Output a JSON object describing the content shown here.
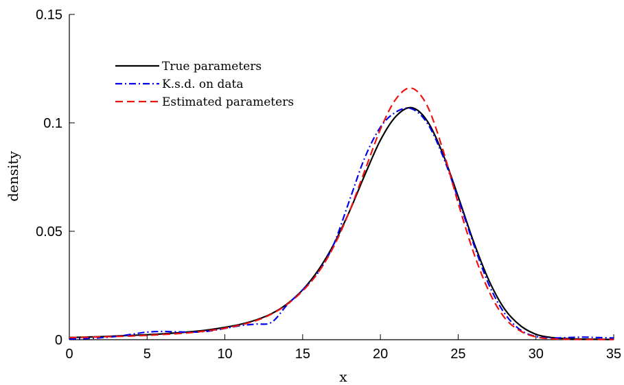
{
  "chart_data": {
    "type": "line",
    "title": "",
    "xlabel": "x",
    "ylabel": "density",
    "xlim": [
      0,
      35
    ],
    "ylim": [
      0,
      0.15
    ],
    "xticks": [
      0,
      5,
      10,
      15,
      20,
      25,
      30,
      35
    ],
    "yticks": [
      0,
      0.05,
      0.1,
      0.15
    ],
    "xtick_labels": [
      "0",
      "5",
      "10",
      "15",
      "20",
      "25",
      "30",
      "35"
    ],
    "ytick_labels": [
      "0",
      "0.05",
      "0.1",
      "0.15"
    ],
    "grid": false,
    "legend_position": "top-left",
    "x": [
      0,
      1,
      2,
      3,
      4,
      5,
      6,
      7,
      8,
      9,
      10,
      11,
      12,
      13,
      14,
      15,
      16,
      17,
      18,
      19,
      20,
      21,
      22,
      23,
      24,
      25,
      26,
      27,
      28,
      29,
      30,
      31,
      32,
      33,
      34,
      35
    ],
    "series": [
      {
        "name": "True parameters",
        "color": "#000000",
        "dash": "solid",
        "values": [
          0.001,
          0.0012,
          0.0014,
          0.0017,
          0.002,
          0.0023,
          0.0027,
          0.0032,
          0.0038,
          0.0046,
          0.0057,
          0.0071,
          0.0091,
          0.012,
          0.0165,
          0.023,
          0.032,
          0.044,
          0.059,
          0.076,
          0.092,
          0.103,
          0.107,
          0.101,
          0.086,
          0.066,
          0.045,
          0.027,
          0.014,
          0.0065,
          0.0025,
          0.001,
          0.0005,
          0.0003,
          0.0002,
          0.0001
        ]
      },
      {
        "name": "K.s.d. on data",
        "color": "#0000ee",
        "dash": "dashdot",
        "values": [
          0.0003,
          0.0005,
          0.0009,
          0.0015,
          0.0025,
          0.0035,
          0.0038,
          0.0036,
          0.0035,
          0.004,
          0.0052,
          0.0065,
          0.0072,
          0.008,
          0.016,
          0.023,
          0.031,
          0.044,
          0.064,
          0.084,
          0.098,
          0.105,
          0.1065,
          0.1,
          0.085,
          0.065,
          0.044,
          0.025,
          0.012,
          0.0045,
          0.0015,
          0.0008,
          0.001,
          0.0012,
          0.001,
          0.0008
        ]
      },
      {
        "name": "Estimated parameters",
        "color": "#ee1111",
        "dash": "dashed",
        "values": [
          0.001,
          0.0011,
          0.0013,
          0.0015,
          0.0017,
          0.002,
          0.0024,
          0.0028,
          0.0034,
          0.0042,
          0.0053,
          0.0068,
          0.0088,
          0.0118,
          0.0163,
          0.0225,
          0.031,
          0.043,
          0.059,
          0.078,
          0.097,
          0.111,
          0.116,
          0.108,
          0.088,
          0.063,
          0.04,
          0.022,
          0.01,
          0.004,
          0.0013,
          0.0004,
          0.0002,
          0.0001,
          0.0001,
          0.0001
        ]
      }
    ]
  }
}
